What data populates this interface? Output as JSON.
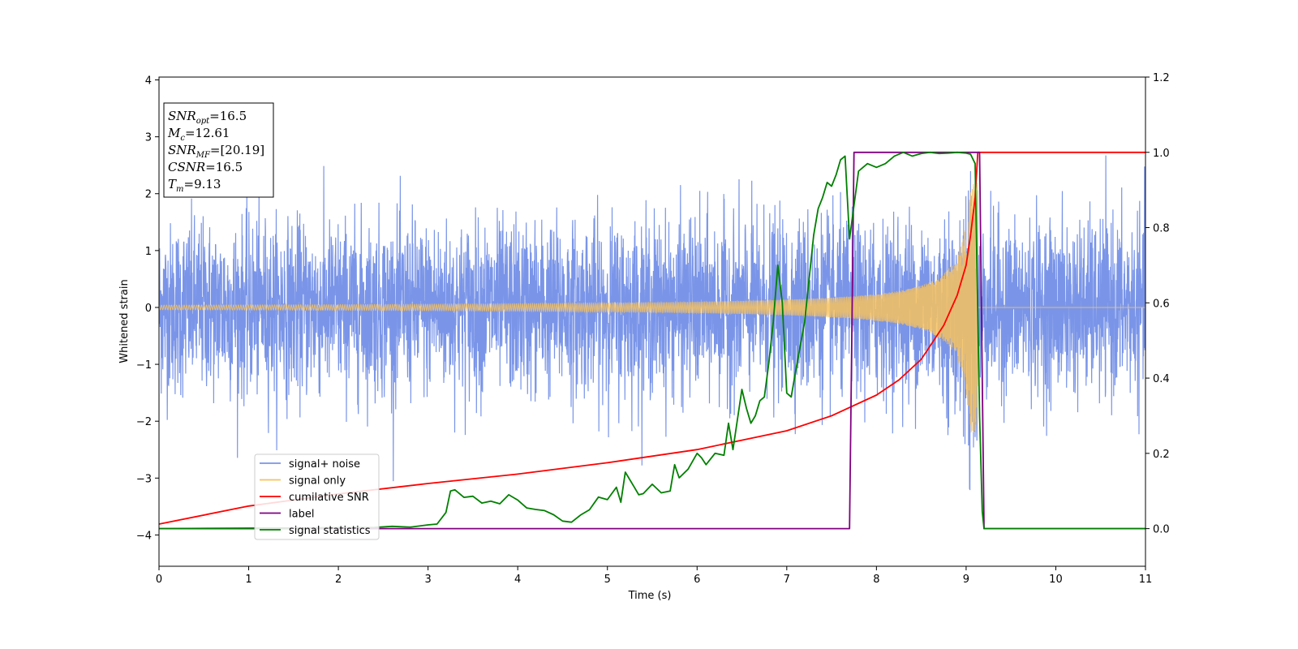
{
  "chart_data": {
    "type": "line",
    "xlabel": "Time (s)",
    "ylabel": "Whitened strain",
    "xlim": [
      0,
      11
    ],
    "ylim_left": [
      -4.55,
      4.05
    ],
    "ylim_right": [
      -0.1,
      1.2
    ],
    "x_ticks": [
      0,
      1,
      2,
      3,
      4,
      5,
      6,
      7,
      8,
      9,
      10,
      11
    ],
    "y_ticks_left": [
      -4,
      -3,
      -2,
      -1,
      0,
      1,
      2,
      3,
      4
    ],
    "y_ticks_right": [
      0.0,
      0.2,
      0.4,
      0.6,
      0.8,
      1.0,
      1.2
    ],
    "grid": false,
    "legend_placement": "lower-left",
    "info_box": {
      "lines": [
        {
          "var": "SNR",
          "sub": "opt",
          "value": "=16.5"
        },
        {
          "var": "M",
          "sub": "c",
          "value": "=12.61"
        },
        {
          "var": "SNR",
          "sub": "MF",
          "value": "=[20.19]"
        },
        {
          "var": "CSNR",
          "sub": "",
          "value": "=16.5"
        },
        {
          "var": "T",
          "sub": "m",
          "value": "=9.13"
        }
      ]
    },
    "series": [
      {
        "name": "signal+ noise",
        "color": "#7a95e8",
        "axis": "left",
        "kind": "noise",
        "sigma": 0.75,
        "sample_rate": 400,
        "spike_max": [
          3.15,
          3.65
        ],
        "spike_min": [
          -3.6,
          -4.15
        ]
      },
      {
        "name": "signal only",
        "color": "#f7c25e",
        "axis": "left",
        "kind": "chirp",
        "merger_time": 9.13,
        "amplitude_start": 0.04,
        "amplitude_peak": 2.2
      },
      {
        "name": "cumilative SNR",
        "color": "#ff0000",
        "axis": "right",
        "x": [
          0,
          1,
          2,
          3,
          4,
          5,
          6,
          6.5,
          7,
          7.5,
          8,
          8.25,
          8.5,
          8.75,
          8.9,
          9.0,
          9.05,
          9.1,
          9.13,
          9.2,
          10,
          11
        ],
        "y": [
          0.012,
          0.06,
          0.092,
          0.12,
          0.145,
          0.175,
          0.21,
          0.235,
          0.26,
          0.3,
          0.355,
          0.395,
          0.45,
          0.54,
          0.62,
          0.7,
          0.78,
          0.88,
          1.0,
          1.0,
          1.0,
          1.0
        ]
      },
      {
        "name": "label",
        "color": "#800080",
        "axis": "right",
        "x": [
          0,
          7.7,
          7.75,
          9.15,
          9.2,
          11
        ],
        "y": [
          0,
          0,
          1,
          1,
          0,
          0
        ]
      },
      {
        "name": "signal statistics",
        "color": "#008000",
        "axis": "right",
        "x": [
          0,
          2.4,
          2.6,
          2.8,
          3.0,
          3.1,
          3.2,
          3.25,
          3.3,
          3.4,
          3.5,
          3.6,
          3.7,
          3.8,
          3.9,
          4.0,
          4.1,
          4.2,
          4.3,
          4.4,
          4.5,
          4.6,
          4.7,
          4.8,
          4.9,
          5.0,
          5.1,
          5.15,
          5.2,
          5.3,
          5.35,
          5.4,
          5.5,
          5.6,
          5.7,
          5.75,
          5.8,
          5.9,
          6.0,
          6.05,
          6.1,
          6.2,
          6.3,
          6.35,
          6.4,
          6.5,
          6.55,
          6.6,
          6.65,
          6.7,
          6.75,
          6.8,
          6.85,
          6.9,
          6.95,
          7.0,
          7.05,
          7.1,
          7.2,
          7.3,
          7.35,
          7.4,
          7.45,
          7.5,
          7.55,
          7.6,
          7.65,
          7.7,
          7.8,
          7.85,
          7.9,
          8.0,
          8.1,
          8.2,
          8.3,
          8.4,
          8.5,
          8.6,
          8.7,
          8.8,
          8.9,
          9.0,
          9.05,
          9.1,
          9.15,
          9.18,
          9.2,
          9.25,
          9.3,
          11
        ],
        "y": [
          0.0,
          0.003,
          0.006,
          0.004,
          0.01,
          0.012,
          0.043,
          0.1,
          0.103,
          0.083,
          0.086,
          0.068,
          0.073,
          0.066,
          0.09,
          0.076,
          0.055,
          0.051,
          0.048,
          0.037,
          0.02,
          0.017,
          0.036,
          0.05,
          0.084,
          0.077,
          0.11,
          0.07,
          0.15,
          0.11,
          0.09,
          0.093,
          0.118,
          0.095,
          0.1,
          0.17,
          0.135,
          0.158,
          0.2,
          0.188,
          0.17,
          0.2,
          0.195,
          0.28,
          0.21,
          0.37,
          0.32,
          0.28,
          0.3,
          0.34,
          0.35,
          0.44,
          0.55,
          0.7,
          0.6,
          0.36,
          0.35,
          0.42,
          0.55,
          0.78,
          0.85,
          0.88,
          0.92,
          0.91,
          0.94,
          0.98,
          0.99,
          0.77,
          0.95,
          0.96,
          0.97,
          0.96,
          0.97,
          0.99,
          1.0,
          0.99,
          0.997,
          1.0,
          0.997,
          0.998,
          1.0,
          0.998,
          0.995,
          0.97,
          0.3,
          0.046,
          0.0,
          0.0,
          0.0,
          0.0
        ]
      }
    ]
  }
}
